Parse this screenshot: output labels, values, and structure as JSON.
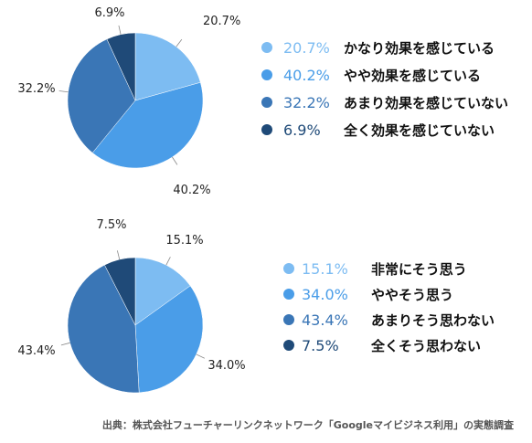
{
  "chart_data": [
    {
      "type": "pie",
      "categories": [
        "かなり効果を感じている",
        "やや効果を感じている",
        "あまり効果を感じていない",
        "全く効果を感じていない"
      ],
      "values": [
        20.7,
        40.2,
        32.2,
        6.9
      ],
      "labels": [
        "20.7%",
        "40.2%",
        "32.2%",
        "6.9%"
      ],
      "colors": [
        "#7dbcf2",
        "#4a9de8",
        "#3a76b6",
        "#1f4a78"
      ],
      "legend_position": "right"
    },
    {
      "type": "pie",
      "categories": [
        "非常にそう思う",
        "ややそう思う",
        "あまりそう思わない",
        "全くそう思わない"
      ],
      "values": [
        15.1,
        34.0,
        43.4,
        7.5
      ],
      "labels": [
        "15.1%",
        "34.0%",
        "43.4%",
        "7.5%"
      ],
      "colors": [
        "#7dbcf2",
        "#4a9de8",
        "#3a76b6",
        "#1f4a78"
      ],
      "legend_position": "right"
    }
  ],
  "source": "出典：株式会社フューチャーリンクネットワーク「Googleマイビジネス利用」の実態調査"
}
